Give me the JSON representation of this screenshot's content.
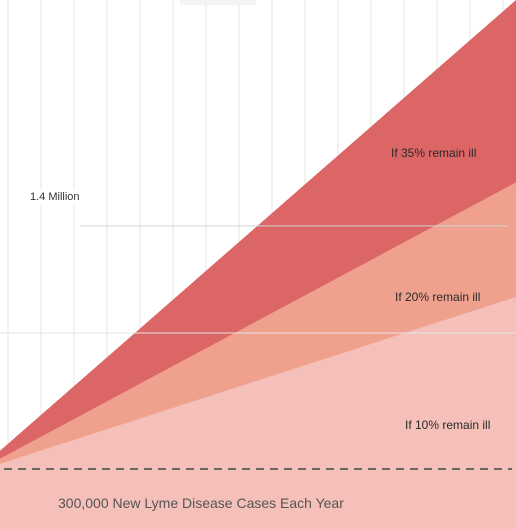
{
  "colors": {
    "band_35": "#dc6566",
    "band_20": "#efa18e",
    "band_10": "#f5c0b9",
    "gridline": "#e6e6e6",
    "ref_line": "#d4d4d4",
    "dashed": "#666666"
  },
  "chart_data": {
    "type": "area",
    "title": "",
    "xlabel": "",
    "ylabel": "",
    "grid": true,
    "series": [
      {
        "name": "If 35% remain ill",
        "start": 105000,
        "end": 2700000
      },
      {
        "name": "If 20% remain ill",
        "start": 60000,
        "end": 1650000
      },
      {
        "name": "If 10% remain ill",
        "start": 30000,
        "end": 990000
      }
    ],
    "reference_lines": [
      {
        "label": "1.4 Million",
        "value": 1400000
      }
    ],
    "baseline_note": "300,000 New Lyme Disease Cases Each Year"
  }
}
